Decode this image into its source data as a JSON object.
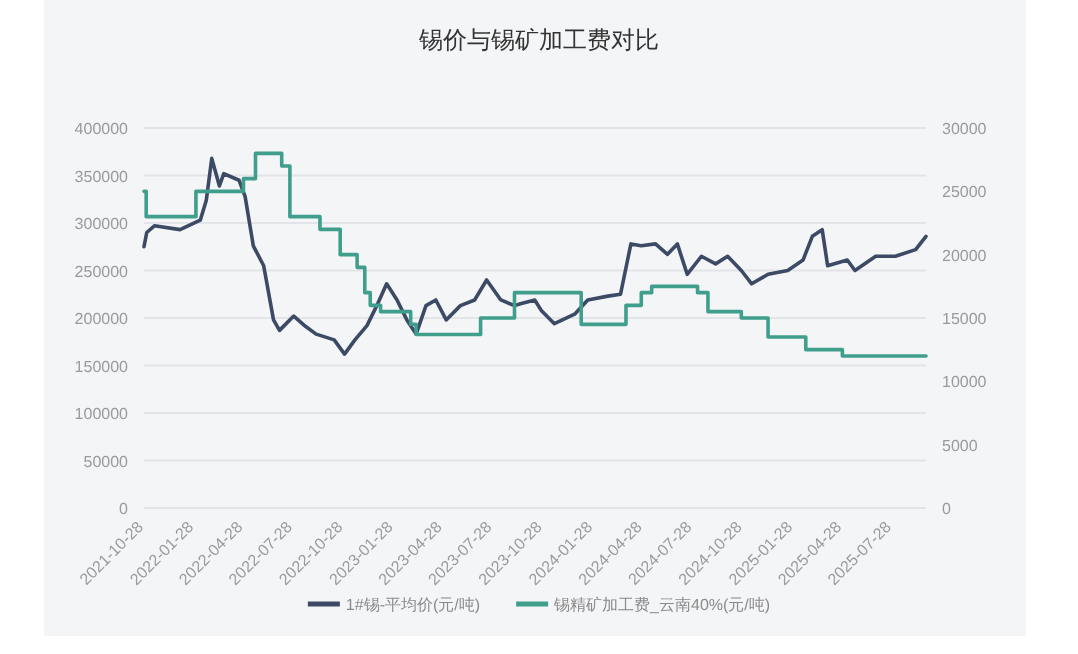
{
  "chart_data": {
    "type": "line",
    "title": "锡价与锡矿加工费对比",
    "xlim": [
      "2021-10-28",
      "2025-09-28"
    ],
    "xticks": [
      "2021-10-28",
      "2022-01-28",
      "2022-04-28",
      "2022-07-28",
      "2022-10-28",
      "2023-01-28",
      "2023-04-28",
      "2023-07-28",
      "2023-10-28",
      "2024-01-28",
      "2024-04-28",
      "2024-07-28",
      "2024-10-28",
      "2025-01-28",
      "2025-04-28",
      "2025-07-28"
    ],
    "ylim": [
      0,
      400000
    ],
    "yticks": [
      0,
      50000,
      100000,
      150000,
      200000,
      250000,
      300000,
      350000,
      400000
    ],
    "y2lim": [
      0,
      30000
    ],
    "y2ticks": [
      0,
      5000,
      10000,
      15000,
      20000,
      25000,
      30000
    ],
    "grid": "y",
    "legend": "bottom",
    "series": [
      {
        "name": "1#锡-平均价(元/吨)",
        "color": "#3d4a66",
        "type": "line",
        "x": [
          "2021-10-28",
          "2021-11-02",
          "2021-11-16",
          "2022-01-02",
          "2022-02-08",
          "2022-02-19",
          "2022-03-01",
          "2022-03-15",
          "2022-03-23",
          "2022-04-20",
          "2022-05-01",
          "2022-05-16",
          "2022-06-04",
          "2022-06-22",
          "2022-07-03",
          "2022-07-29",
          "2022-08-20",
          "2022-09-08",
          "2022-10-11",
          "2022-10-30",
          "2022-11-18",
          "2022-12-10",
          "2022-12-28",
          "2023-01-15",
          "2023-02-03",
          "2023-02-21",
          "2023-03-10",
          "2023-03-28",
          "2023-04-15",
          "2023-05-04",
          "2023-05-30",
          "2023-06-25",
          "2023-07-17",
          "2023-08-12",
          "2023-09-06",
          "2023-09-17",
          "2023-10-13",
          "2023-10-25",
          "2023-11-18",
          "2023-12-25",
          "2024-01-18",
          "2024-02-24",
          "2024-03-18",
          "2024-04-06",
          "2024-04-25",
          "2024-05-21",
          "2024-06-12",
          "2024-06-30",
          "2024-07-18",
          "2024-08-13",
          "2024-09-08",
          "2024-09-30",
          "2024-10-25",
          "2024-11-13",
          "2024-12-13",
          "2025-01-18",
          "2025-02-15",
          "2025-03-04",
          "2025-03-22",
          "2025-04-01",
          "2025-05-07",
          "2025-05-21",
          "2025-06-28",
          "2025-08-03",
          "2025-09-09",
          "2025-09-28"
        ],
        "values": [
          275000,
          290000,
          297000,
          293000,
          303000,
          324000,
          368000,
          339000,
          352000,
          345000,
          328000,
          276000,
          255000,
          198000,
          187000,
          202000,
          191000,
          183000,
          177000,
          162000,
          177000,
          192000,
          213000,
          236000,
          219000,
          198000,
          183000,
          213000,
          219000,
          198000,
          213000,
          219000,
          240000,
          219000,
          213000,
          215000,
          219000,
          208000,
          194000,
          204000,
          219000,
          223000,
          225000,
          278000,
          276000,
          278000,
          267000,
          278000,
          246000,
          265000,
          257000,
          265000,
          250000,
          236000,
          246000,
          250000,
          261000,
          286000,
          293000,
          255000,
          261000,
          250000,
          265000,
          265000,
          272000,
          286000
        ]
      },
      {
        "name": "锡精矿加工费_云南40%(元/吨)",
        "color": "#3f9f8c",
        "type": "step",
        "axis": "y2",
        "x": [
          "2021-10-28",
          "2021-11-01",
          "2022-01-31",
          "2022-04-28",
          "2022-05-20",
          "2022-07-07",
          "2022-07-22",
          "2022-09-15",
          "2022-10-22",
          "2022-11-22",
          "2022-12-06",
          "2022-12-16",
          "2023-01-04",
          "2023-02-28",
          "2023-03-10",
          "2023-07-06",
          "2023-09-06",
          "2024-01-06",
          "2024-03-28",
          "2024-04-25",
          "2024-05-14",
          "2024-08-06",
          "2024-08-25",
          "2024-10-25",
          "2024-12-13",
          "2025-02-20",
          "2025-04-28",
          "2025-09-28"
        ],
        "values": [
          25000,
          23000,
          25000,
          26000,
          28000,
          27000,
          23000,
          22000,
          20000,
          19000,
          17000,
          16000,
          15500,
          14500,
          13700,
          15000,
          17000,
          14500,
          16000,
          17000,
          17500,
          17000,
          15500,
          15000,
          13500,
          12500,
          12000,
          12000
        ]
      }
    ]
  }
}
